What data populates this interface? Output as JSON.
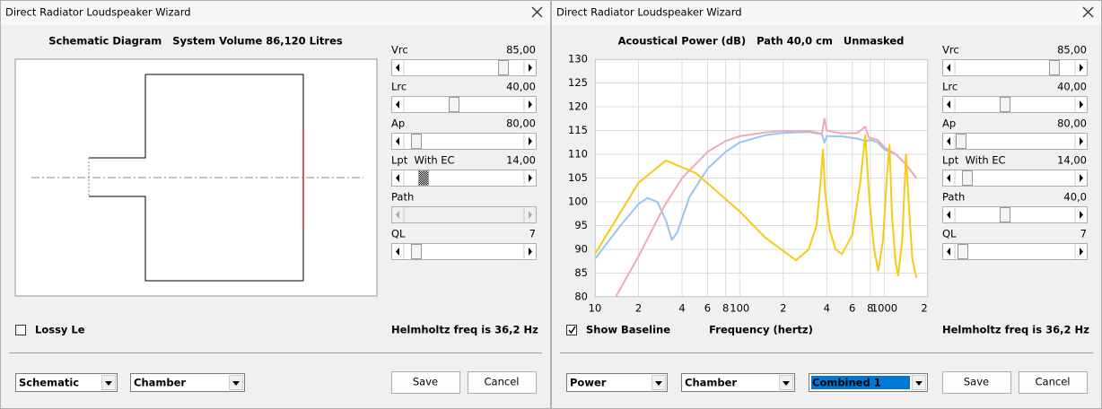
{
  "dialogs": [
    {
      "title": "Direct Radiator Loudspeaker Wizard",
      "heading": "Schematic Diagram   System Volume 86,120 Litres",
      "sliders": [
        {
          "label": "Vrc",
          "value": "85,00"
        },
        {
          "label": "Lrc",
          "value": "40,00"
        },
        {
          "label": "Ap",
          "value": "80,00"
        },
        {
          "label": "Lpt  With EC",
          "value": "14,00"
        },
        {
          "label": "Path",
          "value": ""
        },
        {
          "label": "QL",
          "value": "7"
        }
      ],
      "checkbox": "Lossy Le",
      "status": "Helmholtz freq is 36,2 Hz",
      "dropdowns": [
        "Schematic",
        "Chamber"
      ],
      "buttons": [
        "Save",
        "Cancel"
      ]
    },
    {
      "title": "Direct Radiator Loudspeaker Wizard",
      "sliders": [
        {
          "label": "Vrc",
          "value": "85,00"
        },
        {
          "label": "Lrc",
          "value": "40,00"
        },
        {
          "label": "Ap",
          "value": "80,00"
        },
        {
          "label": "Lpt  With EC",
          "value": "14,00"
        },
        {
          "label": "Path",
          "value": "40,0"
        },
        {
          "label": "QL",
          "value": "7"
        }
      ],
      "checkbox": "Show Baseline",
      "status": "Helmholtz freq is 36,2 Hz",
      "dropdowns": [
        "Power",
        "Chamber",
        "Combined 1"
      ],
      "buttons": [
        "Save",
        "Cancel"
      ]
    }
  ],
  "chart_data": {
    "type": "line",
    "title": "Acoustical Power (dB)   Path 40,0 cm   Unmasked",
    "xlabel": "Frequency (hertz)",
    "xscale": "log",
    "xlim": [
      10,
      2000
    ],
    "ylim": [
      80,
      130
    ],
    "grid": true,
    "xticks": [
      10,
      {
        "value": 20,
        "label": "2"
      },
      {
        "value": 40,
        "label": "4"
      },
      {
        "value": 60,
        "label": "6"
      },
      {
        "value": 80,
        "label": "8"
      },
      100,
      {
        "value": 200,
        "label": "2"
      },
      {
        "value": 400,
        "label": "4"
      },
      {
        "value": 600,
        "label": "6"
      },
      {
        "value": 800,
        "label": "8"
      },
      1000,
      {
        "value": 2000,
        "label": "2"
      }
    ],
    "yticks": [
      80,
      85,
      90,
      95,
      100,
      105,
      110,
      115,
      120,
      125,
      130
    ],
    "series": [
      {
        "color": "#99c4ee",
        "x": [
          10,
          15,
          20,
          23,
          27,
          31,
          34,
          37,
          45,
          60,
          80,
          100,
          150,
          200,
          300,
          370,
          386,
          400,
          500,
          650,
          738,
          800,
          900,
          1000,
          1200,
          1400,
          1667
        ],
        "values": [
          88,
          95,
          99.5,
          100.8,
          100,
          96,
          92,
          93.5,
          101,
          107,
          110.5,
          112.5,
          114,
          114.5,
          114.7,
          114.2,
          112.5,
          113.8,
          113.8,
          113.3,
          112.8,
          113,
          112.5,
          111,
          110,
          108,
          105
        ]
      },
      {
        "color": "#f0aab5",
        "x": [
          13.9,
          20,
          30,
          40,
          60,
          80,
          100,
          150,
          200,
          300,
          370,
          386,
          400,
          500,
          650,
          738,
          780,
          900,
          1000,
          1200,
          1400,
          1667
        ],
        "values": [
          80,
          88.5,
          99,
          105,
          110.5,
          112.8,
          113.8,
          114.6,
          114.9,
          114.9,
          114.3,
          117.5,
          115,
          114.4,
          114.5,
          115.8,
          113.5,
          113,
          111.5,
          110,
          108,
          105
        ]
      },
      {
        "color": "#f4cb18",
        "x": [
          10,
          20,
          31,
          50,
          100,
          150,
          245,
          300,
          340,
          360,
          376,
          390,
          420,
          460,
          509,
          600,
          680,
          738,
          790,
          850,
          908,
          980,
          1040,
          1086,
          1130,
          1200,
          1247,
          1330,
          1412,
          1480,
          1560,
          1667
        ],
        "values": [
          89,
          104,
          108.7,
          106,
          98,
          92.5,
          87.7,
          90,
          95,
          103,
          111,
          102,
          94,
          90,
          89,
          93,
          104,
          114,
          100,
          90,
          85.5,
          92,
          105,
          112,
          97,
          87,
          84.5,
          92,
          110,
          99,
          88,
          84
        ]
      }
    ]
  }
}
